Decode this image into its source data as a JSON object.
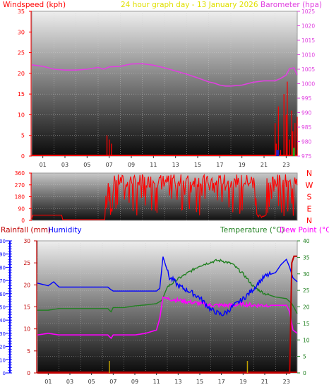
{
  "header": {
    "windspeed_label": "Windspeed (kph)",
    "title": "24 hour graph day - 13 January 2026",
    "barometer_label": "Barometer (hpa)",
    "rainfall_label": "Rainfall (mm)",
    "humidity_label": "Humidity",
    "temperature_label": "Temperature (°C)",
    "dewpoint_label": "Dew Point (°C)"
  },
  "colors": {
    "wind": "#ff0000",
    "barometer": "#e040e0",
    "direction": "#ff0000",
    "humidity": "#0000ff",
    "temperature": "#208020",
    "dewpoint": "#ff00ff",
    "rain": "#c00000",
    "rain_marker": "#c0a000",
    "gust_blue": "#2020c0",
    "gust_green": "#20a020"
  },
  "chart_data": [
    {
      "id": "wind_baro",
      "type": "line",
      "x_tick_labels": [
        "01",
        "03",
        "05",
        "07",
        "09",
        "11",
        "13",
        "15",
        "17",
        "19",
        "21",
        "23"
      ],
      "x_range": [
        0,
        24
      ],
      "y_left": {
        "label": "Windspeed (kph)",
        "range": [
          0,
          35
        ],
        "ticks": [
          0,
          5,
          10,
          15,
          20,
          25,
          30,
          35
        ]
      },
      "y_right": {
        "label": "Barometer (hpa)",
        "range": [
          975,
          1025
        ],
        "ticks": [
          975,
          980,
          985,
          990,
          995,
          1000,
          1005,
          1010,
          1015,
          1020,
          1025
        ]
      },
      "series": [
        {
          "name": "Barometer (hpa)",
          "axis": "right",
          "x": [
            0,
            1,
            2,
            3,
            4,
            5,
            6,
            6.5,
            7,
            8,
            9,
            10,
            11,
            12,
            13,
            14,
            15,
            16,
            16.5,
            17,
            17.5,
            18,
            19,
            20,
            21,
            22,
            22.5,
            23,
            23.3,
            23.7,
            24
          ],
          "y": [
            1006.5,
            1006,
            1005,
            1004.7,
            1004.7,
            1005,
            1005.6,
            1005,
            1005.8,
            1006,
            1006.8,
            1006.9,
            1006.4,
            1005.5,
            1004.4,
            1003.3,
            1002,
            1000.6,
            1000.2,
            999.5,
            999.2,
            999.2,
            999.5,
            1000.5,
            1001,
            1001,
            1001.8,
            1003,
            1005.2,
            1005.5,
            1003
          ]
        },
        {
          "name": "Windspeed (kph)",
          "axis": "left",
          "spikes": [
            [
              6.8,
              5
            ],
            [
              7.0,
              4
            ],
            [
              7.2,
              3
            ],
            [
              22.0,
              8
            ],
            [
              22.1,
              3
            ],
            [
              22.3,
              12
            ],
            [
              22.5,
              1.5
            ],
            [
              22.8,
              15
            ],
            [
              23.0,
              10
            ],
            [
              23.1,
              18
            ],
            [
              23.3,
              4
            ],
            [
              23.5,
              11
            ],
            [
              23.6,
              6
            ],
            [
              23.8,
              8
            ],
            [
              24.0,
              9.5
            ]
          ],
          "baseline": 0
        }
      ]
    },
    {
      "id": "wind_direction",
      "type": "line",
      "x_range": [
        0,
        24
      ],
      "y_left": {
        "range": [
          0,
          360
        ],
        "ticks": [
          0,
          90,
          180,
          270,
          360
        ]
      },
      "y_right_labels": [
        "N",
        "W",
        "S",
        "E",
        "N"
      ],
      "series": [
        {
          "name": "Wind direction",
          "segments": "noisy"
        }
      ]
    },
    {
      "id": "temp_hum_rain",
      "type": "line",
      "x_tick_labels": [
        "01",
        "03",
        "05",
        "07",
        "09",
        "11",
        "13",
        "15",
        "17",
        "19",
        "21",
        "23"
      ],
      "x_range": [
        0,
        24
      ],
      "y_humidity": {
        "label": "Humidity",
        "range": [
          0,
          100
        ],
        "ticks": [
          0,
          10,
          20,
          30,
          40,
          50,
          60,
          70,
          80,
          90,
          100
        ]
      },
      "y_rain": {
        "label": "Rainfall (mm)",
        "range": [
          0,
          30
        ],
        "ticks": [
          0,
          5,
          10,
          15,
          20,
          25,
          30
        ]
      },
      "y_temp": {
        "label": "Temperature (°C)",
        "range": [
          0,
          40
        ],
        "ticks": [
          0,
          5,
          10,
          15,
          20,
          25,
          30,
          35,
          40
        ]
      },
      "series": [
        {
          "name": "Humidity",
          "axis": "humidity",
          "x": [
            0,
            0.5,
            1,
            1.5,
            2,
            3,
            4,
            5,
            6,
            6.5,
            6.8,
            7,
            8,
            9,
            10,
            11,
            11.3,
            11.6,
            11.9,
            12.2,
            12.6,
            13,
            14,
            15,
            16,
            16.5,
            17,
            17.5,
            18,
            19,
            20,
            20.5,
            21,
            22,
            22.5,
            23,
            23.3,
            23.6,
            24
          ],
          "y": [
            68,
            67,
            66,
            69,
            65,
            65,
            65,
            65,
            65,
            65,
            63,
            62,
            62,
            62,
            62,
            62,
            64,
            88,
            80,
            72,
            70,
            66,
            62,
            57,
            48,
            46,
            44,
            46,
            50,
            56,
            64,
            69,
            73,
            76,
            82,
            86,
            80,
            72,
            69
          ]
        },
        {
          "name": "Temperature (°C)",
          "axis": "temp",
          "x": [
            0,
            1,
            2,
            3,
            4,
            5,
            6,
            6.5,
            6.8,
            7,
            8,
            9,
            10,
            11,
            11.5,
            12,
            13,
            14,
            15,
            16,
            16.5,
            17,
            18,
            19,
            20,
            21,
            22,
            23,
            23.5,
            24
          ],
          "y": [
            19,
            19,
            19.5,
            19.5,
            19.5,
            19.5,
            19.5,
            19.5,
            18.5,
            19.8,
            19.8,
            20.3,
            20.6,
            21,
            22,
            26,
            28.5,
            30.5,
            32.5,
            33.5,
            34,
            34,
            33,
            30,
            26,
            24,
            23,
            22.5,
            21,
            18
          ]
        },
        {
          "name": "Dew Point (°C)",
          "axis": "temp",
          "x": [
            0,
            1,
            2,
            3,
            4,
            5,
            6,
            6.5,
            6.8,
            7,
            8,
            9,
            10,
            11,
            11.3,
            11.6,
            12,
            13,
            14,
            15,
            16,
            17,
            18,
            19,
            20,
            21,
            22,
            23,
            23.3,
            23.6,
            24
          ],
          "y": [
            11.5,
            12,
            11.5,
            11.5,
            11.5,
            11.5,
            11.5,
            11.5,
            10.5,
            11.5,
            11.5,
            11.5,
            12,
            13,
            16.5,
            23,
            22.5,
            22,
            21.5,
            21,
            20.5,
            20.5,
            20.5,
            20.8,
            20.5,
            20.5,
            20.5,
            20.5,
            18.5,
            13,
            12
          ]
        },
        {
          "name": "Rainfall (mm)",
          "axis": "rain",
          "x": [
            0,
            23.3,
            23.5,
            23.7,
            24
          ],
          "y": [
            0,
            0,
            25,
            26.5,
            26.5
          ]
        }
      ],
      "rain_markers": [
        6.65,
        19.4
      ]
    }
  ]
}
